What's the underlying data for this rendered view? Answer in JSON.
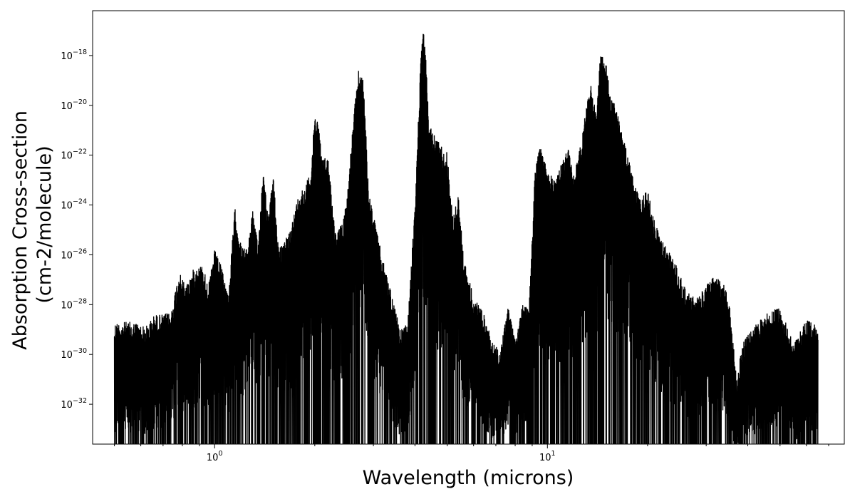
{
  "chart_data": {
    "type": "line",
    "title": "",
    "xlabel": "Wavelength (microns)",
    "ylabel_lines": [
      "Absorption Cross-section",
      "(cm-2/molecule)"
    ],
    "x_scale": "log",
    "y_scale": "log",
    "xlim": [
      0.43,
      78
    ],
    "ylim_exponent": [
      -33.6,
      -16.2
    ],
    "grid": false,
    "legend": "none",
    "line_color": "#000000",
    "x_major_ticks": [
      {
        "value": 1,
        "base": "10",
        "exp": "0"
      },
      {
        "value": 10,
        "base": "10",
        "exp": "1"
      }
    ],
    "y_major_ticks": [
      {
        "value": -18,
        "base": "10",
        "exp": "−18"
      },
      {
        "value": -20,
        "base": "10",
        "exp": "−20"
      },
      {
        "value": -22,
        "base": "10",
        "exp": "−22"
      },
      {
        "value": -24,
        "base": "10",
        "exp": "−24"
      },
      {
        "value": -26,
        "base": "10",
        "exp": "−26"
      },
      {
        "value": -28,
        "base": "10",
        "exp": "−28"
      },
      {
        "value": -30,
        "base": "10",
        "exp": "−30"
      },
      {
        "value": -32,
        "base": "10",
        "exp": "−32"
      }
    ],
    "x_minor_ticks": [
      0.5,
      0.6,
      0.7,
      0.8,
      0.9,
      2,
      3,
      4,
      5,
      6,
      7,
      8,
      9,
      20,
      30,
      40,
      50,
      60,
      70
    ],
    "envelope": {
      "x": [
        0.5,
        0.54,
        0.58,
        0.62,
        0.66,
        0.7,
        0.74,
        0.78,
        0.82,
        0.87,
        0.92,
        0.96,
        1.0,
        1.05,
        1.1,
        1.15,
        1.2,
        1.25,
        1.3,
        1.35,
        1.4,
        1.45,
        1.5,
        1.55,
        1.6,
        1.7,
        1.8,
        1.88,
        1.95,
        2.0,
        2.05,
        2.1,
        2.2,
        2.3,
        2.4,
        2.5,
        2.6,
        2.7,
        2.8,
        2.9,
        3.0,
        3.2,
        3.4,
        3.6,
        3.8,
        4.0,
        4.2,
        4.3,
        4.4,
        4.6,
        4.8,
        5.0,
        5.2,
        5.4,
        5.6,
        6.0,
        6.4,
        6.8,
        7.2,
        7.6,
        8.0,
        8.4,
        8.8,
        9.2,
        9.5,
        10.0,
        10.5,
        11.0,
        11.5,
        12.0,
        12.5,
        13.0,
        13.5,
        14.0,
        14.5,
        15.0,
        15.5,
        16.0,
        17.0,
        18.0,
        19.0,
        20.0,
        21.0,
        22.0,
        24.0,
        26.0,
        28.0,
        30.0,
        32.0,
        34.0,
        35.5,
        37.0,
        38.5,
        40.0,
        45.0,
        50.0,
        55.0,
        60.0,
        65.0
      ],
      "upper": [
        -28.7,
        -28.7,
        -28.7,
        -28.9,
        -28.4,
        -28.4,
        -28.3,
        -26.7,
        -27.2,
        -26.5,
        -26.4,
        -27.2,
        -25.8,
        -26.5,
        -27.6,
        -24.1,
        -25.6,
        -25.8,
        -24.2,
        -25.6,
        -22.4,
        -24.6,
        -22.7,
        -25.4,
        -25.7,
        -24.8,
        -23.4,
        -23.2,
        -22.5,
        -20.3,
        -20.6,
        -22.1,
        -22.1,
        -25.1,
        -24.8,
        -23.7,
        -20.9,
        -18.6,
        -18.9,
        -23.4,
        -24.4,
        -26.2,
        -27.5,
        -29.0,
        -28.8,
        -24.0,
        -16.8,
        -17.4,
        -20.8,
        -21.2,
        -21.6,
        -21.9,
        -24.5,
        -23.6,
        -26.1,
        -27.7,
        -28.3,
        -29.3,
        -30.0,
        -28.0,
        -29.2,
        -28.0,
        -28.2,
        -22.3,
        -21.6,
        -22.6,
        -23.0,
        -22.4,
        -21.6,
        -22.7,
        -21.8,
        -20.3,
        -19.1,
        -20.3,
        -17.6,
        -18.3,
        -19.7,
        -20.0,
        -21.4,
        -22.8,
        -23.8,
        -23.4,
        -24.7,
        -25.4,
        -26.2,
        -27.4,
        -27.8,
        -27.2,
        -26.8,
        -27.2,
        -28.2,
        -31.0,
        -29.6,
        -29.2,
        -28.4,
        -28.1,
        -29.6,
        -28.6,
        -28.9
      ],
      "lower": [
        -34,
        -34,
        -34,
        -34,
        -34,
        -34,
        -34,
        -34,
        -34,
        -34,
        -34,
        -34,
        -34,
        -34,
        -34,
        -34,
        -34,
        -34,
        -34,
        -34,
        -34,
        -34,
        -34,
        -34,
        -34,
        -34,
        -34,
        -34,
        -34,
        -34,
        -34,
        -34,
        -34,
        -34,
        -34,
        -34,
        -34,
        -34,
        -34,
        -34,
        -34,
        -34,
        -34,
        -34,
        -34,
        -34,
        -34,
        -34,
        -34,
        -34,
        -34,
        -34,
        -34,
        -34,
        -34,
        -34,
        -34,
        -34,
        -34,
        -34,
        -34,
        -34,
        -34,
        -34,
        -34,
        -34,
        -34,
        -34,
        -34,
        -34,
        -34,
        -34,
        -34,
        -34,
        -34,
        -34,
        -34,
        -34,
        -34,
        -34,
        -34,
        -34,
        -34,
        -34,
        -34,
        -34,
        -34,
        -34,
        -34,
        -34,
        -34,
        -34,
        -34,
        -34,
        -34,
        -34,
        -34,
        -34,
        -34
      ]
    }
  }
}
